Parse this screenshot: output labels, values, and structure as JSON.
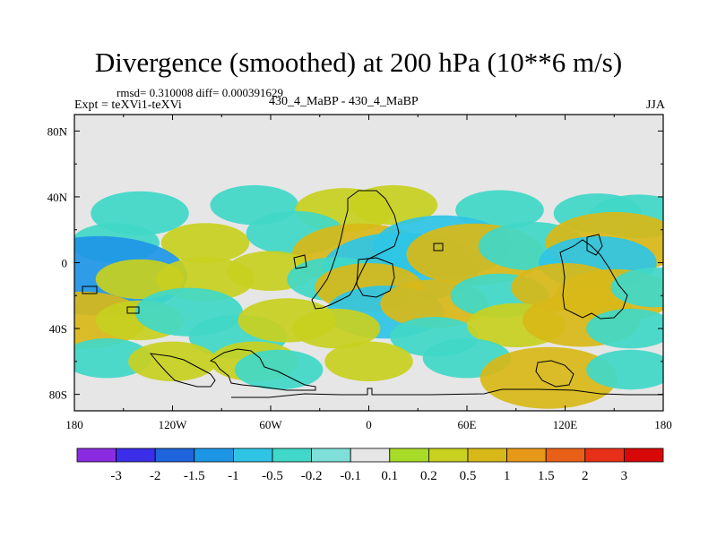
{
  "chart_data": {
    "type": "heatmap",
    "title": "Divergence (smoothed) at 200 hPa (10**6 m/s)",
    "stats_text": "rmsd= 0.310008 diff= 0.000391629",
    "experiment_label": "Expt = teXVi1-teXVi",
    "case_label": "430_4_MaBP - 430_4_MaBP",
    "season": "JJA",
    "units": "10**6 m/s",
    "x_axis": {
      "range": [
        -180,
        180
      ],
      "ticks": [
        -180,
        -120,
        -60,
        0,
        60,
        120,
        180
      ],
      "tick_labels": [
        "180",
        "120W",
        "60W",
        "0",
        "60E",
        "120E",
        "180"
      ]
    },
    "y_axis": {
      "range": [
        -90,
        90
      ],
      "ticks": [
        80,
        40,
        0,
        -40,
        -80
      ],
      "tick_labels": [
        "80N",
        "40N",
        "0",
        "40S",
        "80S"
      ]
    },
    "colorbar": {
      "labels": [
        "-3",
        "-2",
        "-1.5",
        "-1",
        "-0.5",
        "-0.2",
        "-0.1",
        "0.1",
        "0.2",
        "0.5",
        "1",
        "1.5",
        "2",
        "3"
      ],
      "colors": [
        "#8a2be2",
        "#3a2ee8",
        "#1e64dc",
        "#1e96e6",
        "#2fc4e6",
        "#40d8c8",
        "#7ee0d8",
        "#e6e6e6",
        "#a8dc28",
        "#c8d020",
        "#d8b818",
        "#e89818",
        "#e86018",
        "#e83018",
        "#d80808"
      ]
    },
    "blobs": [
      {
        "lon": -140,
        "lat": 30,
        "value": -0.4
      },
      {
        "lon": -70,
        "lat": 35,
        "value": -0.3
      },
      {
        "lon": -15,
        "lat": 32,
        "value": 0.4
      },
      {
        "lon": 15,
        "lat": 35,
        "value": 0.3
      },
      {
        "lon": 80,
        "lat": 32,
        "value": -0.3
      },
      {
        "lon": 140,
        "lat": 30,
        "value": -0.3
      },
      {
        "lon": 165,
        "lat": 28,
        "value": -0.4
      },
      {
        "lon": -155,
        "lat": 12,
        "value": -0.3
      },
      {
        "lon": -100,
        "lat": 12,
        "value": 0.3
      },
      {
        "lon": -45,
        "lat": 18,
        "value": -0.4
      },
      {
        "lon": -5,
        "lat": 5,
        "value": 0.8
      },
      {
        "lon": 20,
        "lat": -3,
        "value": -1.0
      },
      {
        "lon": 45,
        "lat": 10,
        "value": -0.8
      },
      {
        "lon": 65,
        "lat": 5,
        "value": 0.8
      },
      {
        "lon": 100,
        "lat": 10,
        "value": -0.5
      },
      {
        "lon": 150,
        "lat": 12,
        "value": 0.8
      },
      {
        "lon": 140,
        "lat": 0,
        "value": -0.6
      },
      {
        "lon": -165,
        "lat": -8,
        "value": -1.2
      },
      {
        "lon": -140,
        "lat": -10,
        "value": 0.3
      },
      {
        "lon": -100,
        "lat": -10,
        "value": 0.4
      },
      {
        "lon": -60,
        "lat": -5,
        "value": 0.3
      },
      {
        "lon": -20,
        "lat": -10,
        "value": -0.4
      },
      {
        "lon": 0,
        "lat": -15,
        "value": 0.5
      },
      {
        "lon": 10,
        "lat": -30,
        "value": -0.6
      },
      {
        "lon": 40,
        "lat": -25,
        "value": 0.5
      },
      {
        "lon": 80,
        "lat": -20,
        "value": -0.4
      },
      {
        "lon": 120,
        "lat": -15,
        "value": 0.5
      },
      {
        "lon": 150,
        "lat": -20,
        "value": 0.6
      },
      {
        "lon": 175,
        "lat": -15,
        "value": -0.3
      },
      {
        "lon": -175,
        "lat": -35,
        "value": 0.7
      },
      {
        "lon": -140,
        "lat": -35,
        "value": 0.3
      },
      {
        "lon": -110,
        "lat": -30,
        "value": -0.5
      },
      {
        "lon": -80,
        "lat": -45,
        "value": -0.4
      },
      {
        "lon": -50,
        "lat": -35,
        "value": 0.4
      },
      {
        "lon": -20,
        "lat": -40,
        "value": 0.3
      },
      {
        "lon": 40,
        "lat": -45,
        "value": -0.3
      },
      {
        "lon": 90,
        "lat": -38,
        "value": 0.4
      },
      {
        "lon": 130,
        "lat": -35,
        "value": 0.6
      },
      {
        "lon": 160,
        "lat": -40,
        "value": -0.3
      },
      {
        "lon": -160,
        "lat": -58,
        "value": -0.3
      },
      {
        "lon": -120,
        "lat": -60,
        "value": 0.3
      },
      {
        "lon": -70,
        "lat": -60,
        "value": 0.3
      },
      {
        "lon": -55,
        "lat": -65,
        "value": -0.3
      },
      {
        "lon": 0,
        "lat": -60,
        "value": 0.3
      },
      {
        "lon": 60,
        "lat": -58,
        "value": -0.3
      },
      {
        "lon": 110,
        "lat": -70,
        "value": 0.8
      },
      {
        "lon": 160,
        "lat": -65,
        "value": -0.3
      }
    ]
  }
}
